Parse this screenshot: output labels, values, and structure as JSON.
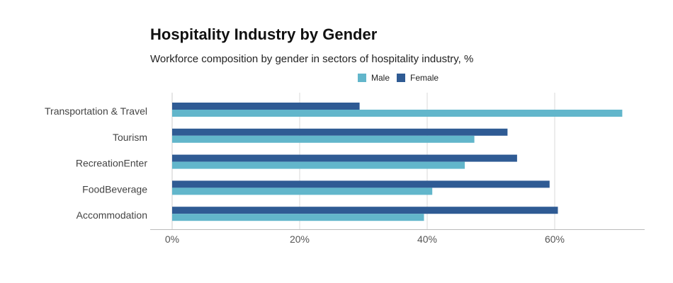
{
  "chart_data": {
    "type": "bar",
    "orientation": "horizontal",
    "title": "Hospitality Industry by Gender",
    "subtitle": "Workforce composition by gender in sectors of hospitality industry, %",
    "categories": [
      "Transportation & Travel",
      "Tourism",
      "RecreationEnter",
      "FoodBeverage",
      "Accommodation"
    ],
    "series": [
      {
        "name": "Male",
        "color": "#62b6cb",
        "values": [
          70.6,
          47.4,
          45.9,
          40.8,
          39.5
        ]
      },
      {
        "name": "Female",
        "color": "#2f5b94",
        "values": [
          29.4,
          52.6,
          54.1,
          59.2,
          60.5
        ]
      }
    ],
    "xlim": [
      0,
      74
    ],
    "xticks": [
      0,
      20,
      40,
      60
    ],
    "xtick_labels": [
      "0%",
      "20%",
      "40%",
      "60%"
    ],
    "grid": true,
    "legend_position": "top"
  }
}
